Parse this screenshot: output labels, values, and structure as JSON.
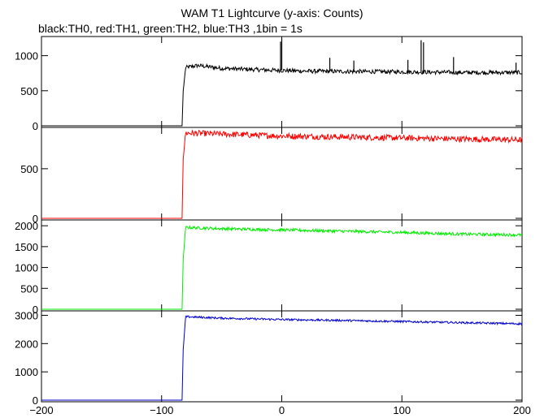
{
  "chart_data": {
    "type": "line",
    "title": "WAM T1 Lightcurve (y-axis: Counts)",
    "subtitle": "black:TH0, red:TH1, green:TH2, blue:TH3 ,1bin = 1s",
    "xlim": [
      -200,
      200
    ],
    "x_ticks": [
      -200,
      -100,
      0,
      100,
      200
    ],
    "x_tick_labels": [
      "−200",
      "−100",
      "0",
      "100",
      "200"
    ],
    "panels": [
      {
        "series": "TH0",
        "color": "#000000",
        "ylim": [
          0,
          1250
        ],
        "y_ticks": [
          0,
          500,
          1000
        ],
        "y_tick_labels": [
          "0",
          "500",
          "1000"
        ],
        "baseline": 0,
        "rise_x": -82,
        "points": [
          [
            -200,
            0
          ],
          [
            -83,
            0
          ],
          [
            -82,
            500
          ],
          [
            -80,
            830
          ],
          [
            -70,
            860
          ],
          [
            -50,
            820
          ],
          [
            -20,
            800
          ],
          [
            0,
            790
          ],
          [
            20,
            780
          ],
          [
            50,
            775
          ],
          [
            100,
            770
          ],
          [
            150,
            760
          ],
          [
            200,
            760
          ]
        ],
        "spikes": [
          [
            -1,
            1200
          ],
          [
            0,
            1250
          ],
          [
            40,
            970
          ],
          [
            60,
            930
          ],
          [
            105,
            940
          ],
          [
            116,
            1220
          ],
          [
            118,
            1190
          ],
          [
            143,
            980
          ],
          [
            195,
            900
          ]
        ],
        "noise": 30
      },
      {
        "series": "TH1",
        "color": "#ff0000",
        "ylim": [
          0,
          900
        ],
        "y_ticks": [
          0,
          500
        ],
        "y_tick_labels": [
          "0",
          "500"
        ],
        "baseline": 0,
        "rise_x": -82,
        "points": [
          [
            -200,
            0
          ],
          [
            -83,
            0
          ],
          [
            -82,
            600
          ],
          [
            -80,
            860
          ],
          [
            -50,
            850
          ],
          [
            0,
            830
          ],
          [
            50,
            820
          ],
          [
            100,
            810
          ],
          [
            150,
            800
          ],
          [
            200,
            790
          ]
        ],
        "spikes": [],
        "noise": 30
      },
      {
        "series": "TH2",
        "color": "#00ee00",
        "ylim": [
          0,
          2100
        ],
        "y_ticks": [
          0,
          500,
          1000,
          1500,
          2000
        ],
        "y_tick_labels": [
          "0",
          "500",
          "1000",
          "1500",
          "2000"
        ],
        "baseline": 0,
        "rise_x": -82,
        "points": [
          [
            -200,
            0
          ],
          [
            -83,
            0
          ],
          [
            -82,
            1200
          ],
          [
            -80,
            1960
          ],
          [
            -50,
            1930
          ],
          [
            0,
            1900
          ],
          [
            50,
            1870
          ],
          [
            100,
            1840
          ],
          [
            150,
            1800
          ],
          [
            200,
            1780
          ]
        ],
        "spikes": [],
        "noise": 35
      },
      {
        "series": "TH3",
        "color": "#0000cc",
        "ylim": [
          0,
          3100
        ],
        "y_ticks": [
          0,
          1000,
          2000,
          3000
        ],
        "y_tick_labels": [
          "0",
          "1000",
          "2000",
          "3000"
        ],
        "baseline": 0,
        "rise_x": -82,
        "points": [
          [
            -200,
            0
          ],
          [
            -83,
            0
          ],
          [
            -82,
            1800
          ],
          [
            -80,
            2950
          ],
          [
            -50,
            2900
          ],
          [
            0,
            2850
          ],
          [
            50,
            2820
          ],
          [
            100,
            2780
          ],
          [
            150,
            2740
          ],
          [
            200,
            2700
          ]
        ],
        "spikes": [],
        "noise": 35
      }
    ]
  }
}
